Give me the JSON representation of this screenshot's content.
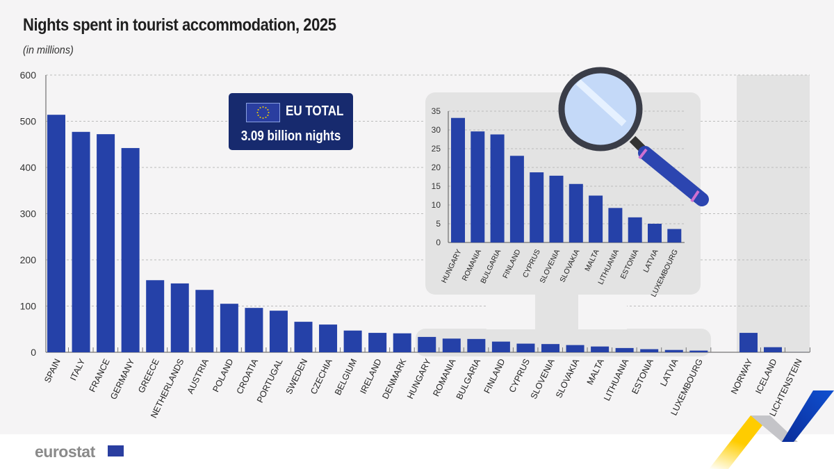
{
  "title": "Nights spent in tourist accommodation, 2025",
  "subtitle": "(in millions)",
  "eu_total": {
    "label": "EU TOTAL",
    "value": "3.09 billion nights",
    "icon": "eu-flag-icon"
  },
  "logo": "eurostat",
  "colors": {
    "bar": "#2541a8",
    "background": "#f5f4f5",
    "inset_background": "#e3e3e3",
    "eu_box": "#172a6e"
  },
  "chart_data": [
    {
      "type": "bar",
      "title": "Nights spent in tourist accommodation, 2025",
      "ylabel": "(in millions)",
      "ylim": [
        0,
        600
      ],
      "yticks": [
        0,
        100,
        200,
        300,
        400,
        500,
        600
      ],
      "grid": true,
      "categories": [
        "SPAIN",
        "ITALY",
        "FRANCE",
        "GERMANY",
        "GREECE",
        "NETHERLANDS",
        "AUSTRIA",
        "POLAND",
        "CROATIA",
        "PORTUGAL",
        "SWEDEN",
        "CZECHIA",
        "BELGIUM",
        "IRELAND",
        "DENMARK",
        "HUNGARY",
        "ROMANIA",
        "BULGARIA",
        "FINLAND",
        "CYPRUS",
        "SLOVENIA",
        "SLOVAKIA",
        "MALTA",
        "LITHUANIA",
        "ESTONIA",
        "LATVIA",
        "LUXEMBOURG",
        "NORWAY",
        "ICELAND",
        "LICHTENSTEIN"
      ],
      "values": [
        514,
        477,
        472,
        442,
        156,
        149,
        135,
        105,
        96,
        90,
        66,
        60,
        47,
        42,
        41,
        33.2,
        29.6,
        28.8,
        23.1,
        18.7,
        17.8,
        15.6,
        12.5,
        9.2,
        6.7,
        5.0,
        3.6,
        42,
        11,
        0.1
      ]
    },
    {
      "type": "bar",
      "ylim": [
        0,
        35
      ],
      "yticks": [
        0,
        5,
        10,
        15,
        20,
        25,
        30,
        35
      ],
      "grid": true,
      "categories": [
        "HUNGARY",
        "ROMANIA",
        "BULGARIA",
        "FINLAND",
        "CYPRUS",
        "SLOVENIA",
        "SLOVAKIA",
        "MALTA",
        "LITHUANIA",
        "ESTONIA",
        "LATVIA",
        "LUXEMBOURG"
      ],
      "values": [
        33.2,
        29.6,
        28.8,
        23.1,
        18.7,
        17.8,
        15.6,
        12.5,
        9.2,
        6.7,
        5.0,
        3.6
      ]
    }
  ]
}
